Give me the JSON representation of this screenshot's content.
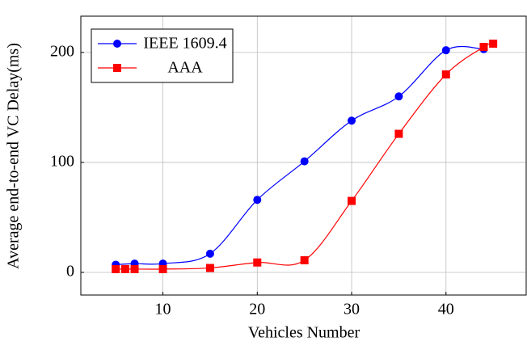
{
  "chart_data": {
    "type": "line",
    "xlabel": "Vehicles Number",
    "ylabel": "Average end-to-end VC Delay(ms)",
    "xlim": [
      1.3,
      48.5
    ],
    "xticks": [
      10,
      20,
      30,
      40
    ],
    "ylim": [
      -20.6,
      233
    ],
    "yticks": [
      0,
      100,
      200
    ],
    "grid": true,
    "smooth": true,
    "legend": "upper left",
    "series": [
      {
        "name": "IEEE 1609.4",
        "color": "#0000ff",
        "marker": "circle",
        "x": [
          5,
          7,
          10,
          15,
          20,
          25,
          30,
          35,
          40,
          44
        ],
        "values": [
          7,
          8,
          8,
          17,
          66,
          101,
          138,
          160,
          202,
          203
        ]
      },
      {
        "name": "AAA",
        "color": "#ff0000",
        "marker": "square",
        "x": [
          5,
          6,
          7,
          10,
          15,
          20,
          25,
          30,
          35,
          40,
          44,
          45
        ],
        "values": [
          3,
          3,
          3,
          3,
          4,
          9,
          11,
          65,
          126,
          180,
          205,
          208
        ]
      }
    ]
  }
}
